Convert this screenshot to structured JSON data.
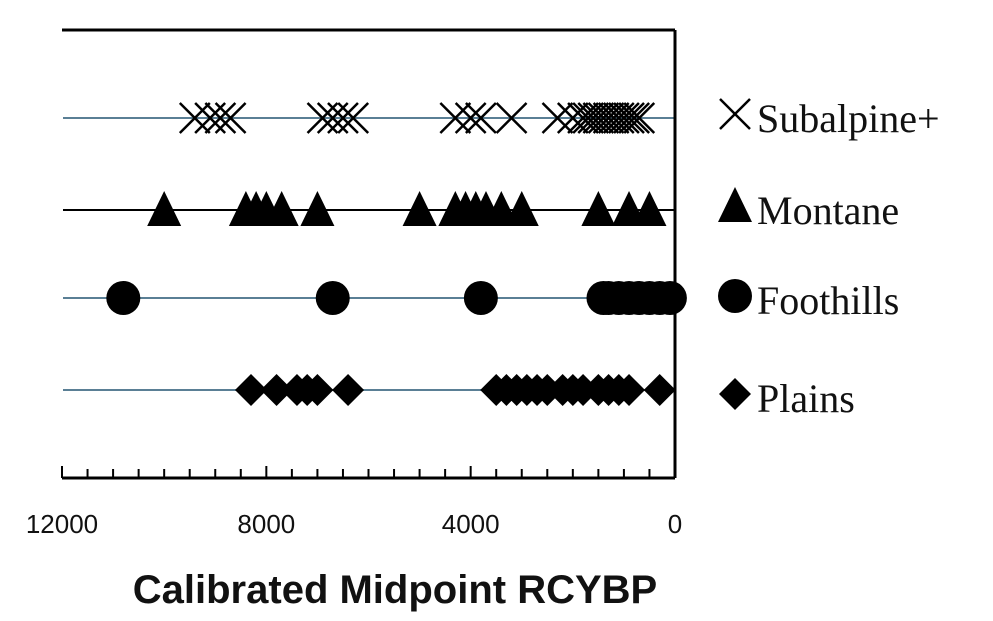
{
  "chart_data": {
    "type": "scatter",
    "title": "",
    "xlabel": "Calibrated Midpoint RCYBP",
    "ylabel": "",
    "xlim": [
      12000,
      0
    ],
    "x_reversed": true,
    "x_ticks": [
      12000,
      8000,
      4000,
      0
    ],
    "x_tick_labels": [
      "12000",
      "8000",
      "4000",
      "0"
    ],
    "minor_tick_interval": 500,
    "grid": false,
    "legend_position": "right",
    "series": [
      {
        "name": "Subalpine+",
        "marker": "x",
        "color": "#000000",
        "line_color": "#5a7f95",
        "values": [
          9400,
          9100,
          8900,
          8700,
          6900,
          6700,
          6500,
          6300,
          4300,
          4000,
          3800,
          3200,
          2300,
          2000,
          1800,
          1700,
          1600,
          1500,
          1400,
          1300,
          1200,
          1100,
          1000,
          900,
          800,
          700
        ]
      },
      {
        "name": "Montane",
        "marker": "triangle",
        "color": "#000000",
        "line_color": "#000000",
        "values": [
          10000,
          8400,
          8200,
          8000,
          7700,
          7000,
          5000,
          4300,
          4100,
          3900,
          3700,
          3400,
          3000,
          1500,
          900,
          500
        ]
      },
      {
        "name": "Foothills",
        "marker": "circle",
        "color": "#000000",
        "line_color": "#5a7f95",
        "values": [
          10800,
          6700,
          3800,
          1400,
          1300,
          1100,
          900,
          700,
          500,
          300,
          100
        ]
      },
      {
        "name": "Plains",
        "marker": "diamond",
        "color": "#000000",
        "line_color": "#5a7f95",
        "values": [
          8300,
          7800,
          7400,
          7200,
          7000,
          6400,
          3500,
          3300,
          3100,
          2900,
          2700,
          2500,
          2200,
          2000,
          1800,
          1500,
          1300,
          1100,
          900,
          300
        ]
      }
    ]
  }
}
